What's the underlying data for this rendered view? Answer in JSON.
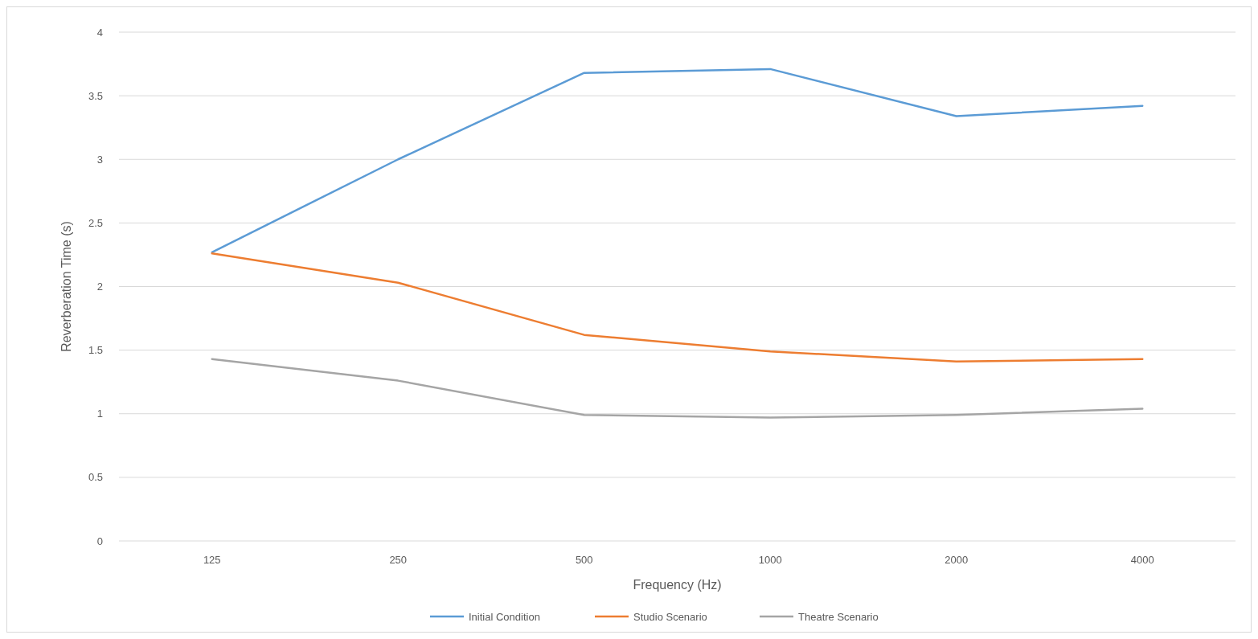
{
  "chart_data": {
    "type": "line",
    "xlabel": "Frequency (Hz)",
    "ylabel": "Reverberation Time (s)",
    "categories": [
      "125",
      "250",
      "500",
      "1000",
      "2000",
      "4000"
    ],
    "series": [
      {
        "name": "Initial Condition",
        "color": "#5b9bd5",
        "values": [
          2.27,
          3.0,
          3.68,
          3.71,
          3.34,
          3.42
        ]
      },
      {
        "name": "Studio Scenario",
        "color": "#ed7d31",
        "values": [
          2.26,
          2.03,
          1.62,
          1.49,
          1.41,
          1.43
        ]
      },
      {
        "name": "Theatre Scenario",
        "color": "#a5a5a5",
        "values": [
          1.43,
          1.26,
          0.99,
          0.97,
          0.99,
          1.04
        ]
      }
    ],
    "ylim": [
      0,
      4
    ],
    "yticks": [
      0,
      0.5,
      1,
      1.5,
      2,
      2.5,
      3,
      3.5,
      4
    ],
    "grid": "y",
    "legend": "bottom",
    "marker": "none",
    "line_style": "solid"
  }
}
